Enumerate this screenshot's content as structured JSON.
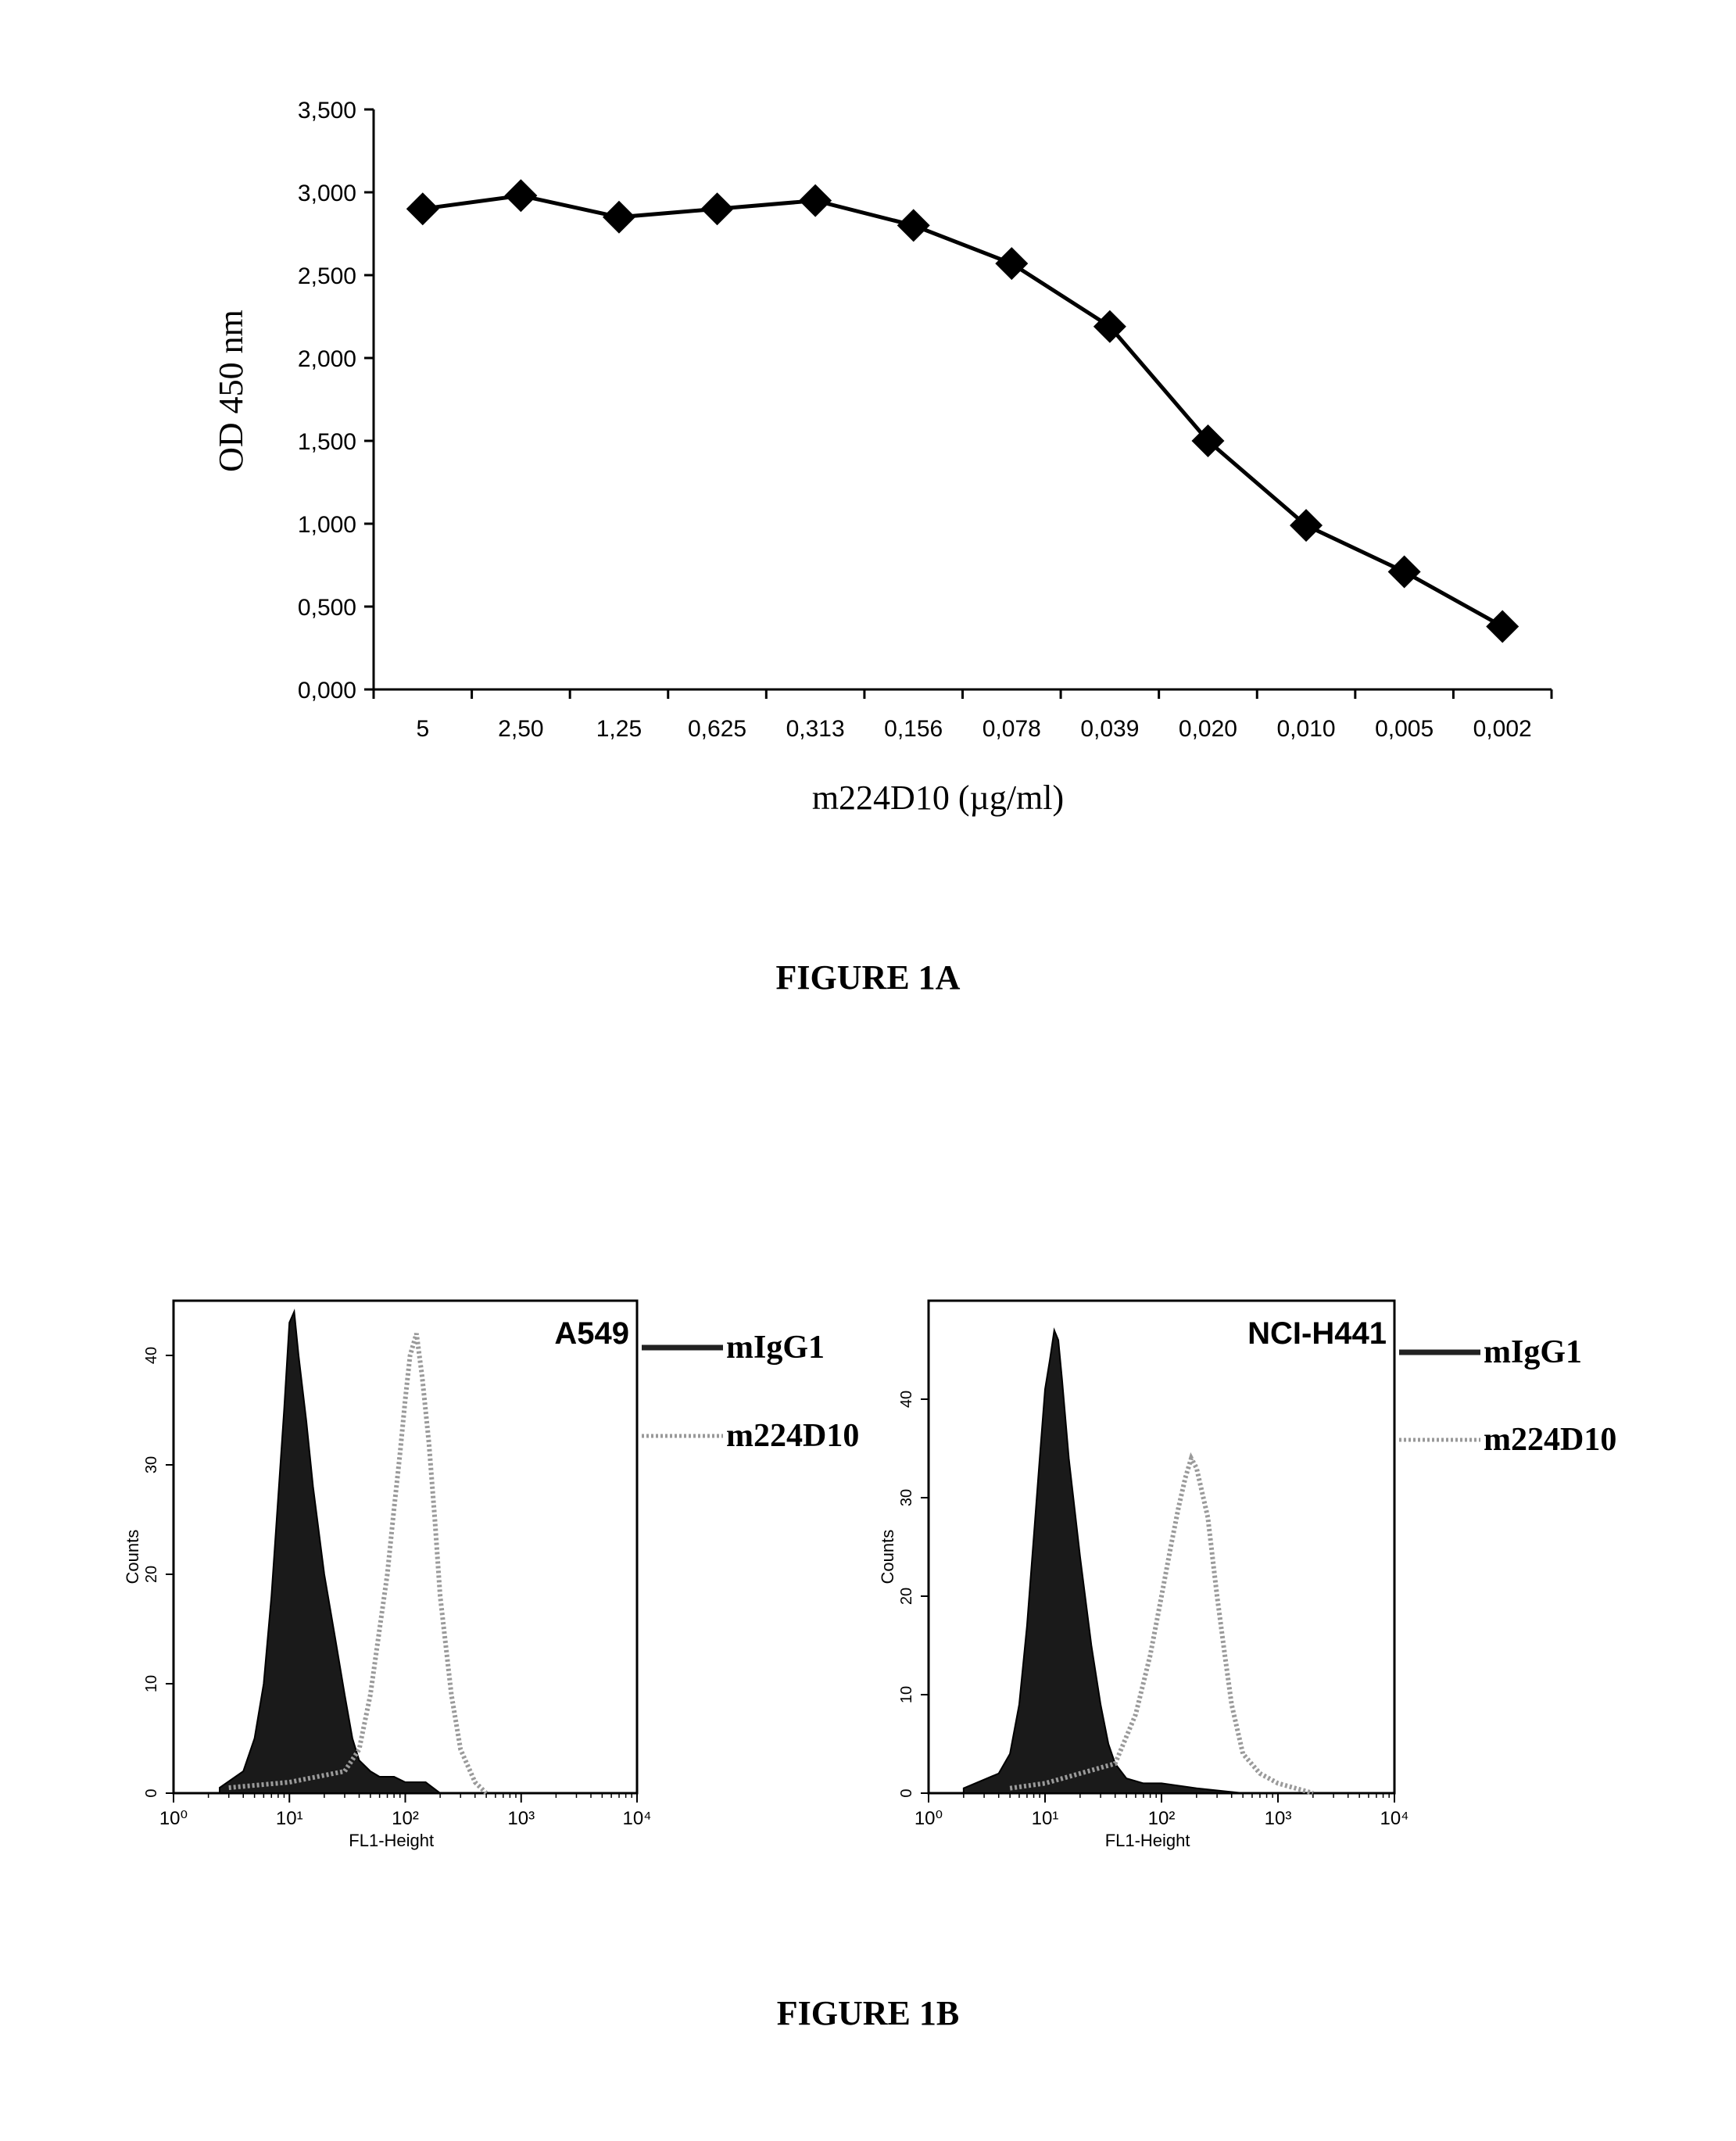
{
  "figure_1a": {
    "caption": "FIGURE 1A",
    "ylabel": "OD 450 nm",
    "xlabel": "m224D10 (µg/ml)",
    "y_tick_labels": [
      "0,000",
      "0,500",
      "1,000",
      "1,500",
      "2,000",
      "2,500",
      "3,000",
      "3,500"
    ],
    "marker": "filled-diamond",
    "line_color": "#000000"
  },
  "figure_1b": {
    "caption": "FIGURE 1B",
    "legend": [
      {
        "label": "mIgG1",
        "style": "dark-solid"
      },
      {
        "label": "m224D10",
        "style": "light-dotted"
      }
    ]
  },
  "chart_data": [
    {
      "type": "line",
      "title": "",
      "xlabel": "m224D10 (µg/ml)",
      "ylabel": "OD 450 nm",
      "categories": [
        "5",
        "2,50",
        "1,25",
        "0,625",
        "0,313",
        "0,156",
        "0,078",
        "0,039",
        "0,020",
        "0,010",
        "0,005",
        "0,002"
      ],
      "series": [
        {
          "values": [
            2.9,
            2.98,
            2.85,
            2.9,
            2.95,
            2.8,
            2.57,
            2.19,
            1.5,
            0.99,
            0.71,
            0.38
          ]
        }
      ],
      "ylim": [
        0,
        3.5
      ],
      "grid": false,
      "legend": "none"
    },
    {
      "type": "area",
      "title": "",
      "panel_label": "A549",
      "xlabel": "FL1-Height",
      "ylabel": "Counts",
      "x_scale": "log",
      "xlim": [
        1,
        10000
      ],
      "ylim": [
        0,
        45
      ],
      "x_tick_labels": [
        "10⁰",
        "10¹",
        "10²",
        "10³",
        "10⁴"
      ],
      "y_tick_labels": [
        "0",
        "10",
        "20",
        "30",
        "40"
      ],
      "series": [
        {
          "name": "mIgG1",
          "x": [
            2.5,
            4,
            5,
            6,
            7,
            8,
            9,
            10,
            11,
            12,
            14,
            16,
            20,
            25,
            30,
            35,
            40,
            50,
            60,
            80,
            100,
            150,
            200
          ],
          "values": [
            0.5,
            2,
            5,
            10,
            18,
            27,
            35,
            43,
            44,
            40,
            34,
            28,
            20,
            14,
            9,
            5,
            3,
            2,
            1.5,
            1.5,
            1,
            1,
            0
          ]
        },
        {
          "name": "m224D10",
          "x": [
            3,
            10,
            30,
            40,
            50,
            60,
            70,
            80,
            90,
            100,
            110,
            125,
            140,
            160,
            180,
            200,
            250,
            300,
            400,
            500
          ],
          "values": [
            0.5,
            1,
            2,
            4,
            9,
            15,
            20,
            26,
            31,
            36,
            40,
            42,
            38,
            32,
            25,
            18,
            9,
            4,
            1,
            0
          ]
        }
      ],
      "grid": false,
      "legend": "right"
    },
    {
      "type": "area",
      "title": "",
      "panel_label": "NCI-H441",
      "xlabel": "FL1-Height",
      "ylabel": "Counts",
      "x_scale": "log",
      "xlim": [
        1,
        10000
      ],
      "ylim": [
        0,
        50
      ],
      "x_tick_labels": [
        "10⁰",
        "10¹",
        "10²",
        "10³",
        "10⁴"
      ],
      "y_tick_labels": [
        "0",
        "10",
        "20",
        "30",
        "40"
      ],
      "series": [
        {
          "name": "mIgG1",
          "x": [
            2,
            4,
            5,
            6,
            7,
            8,
            9,
            10,
            11,
            12,
            13,
            14,
            16,
            20,
            25,
            30,
            35,
            40,
            50,
            70,
            100,
            200,
            500
          ],
          "values": [
            0.5,
            2,
            4,
            9,
            17,
            26,
            34,
            41,
            44,
            47,
            46,
            42,
            34,
            24,
            15,
            9,
            5,
            3,
            1.5,
            1,
            1,
            0.5,
            0
          ]
        },
        {
          "name": "m224D10",
          "x": [
            5,
            10,
            40,
            60,
            80,
            100,
            120,
            140,
            160,
            180,
            200,
            250,
            300,
            350,
            400,
            500,
            700,
            1000,
            2000
          ],
          "values": [
            0.5,
            1,
            3,
            8,
            14,
            20,
            25,
            29,
            32,
            34,
            33,
            28,
            20,
            14,
            9,
            4,
            2,
            1,
            0
          ]
        }
      ],
      "grid": false,
      "legend": "right"
    }
  ]
}
